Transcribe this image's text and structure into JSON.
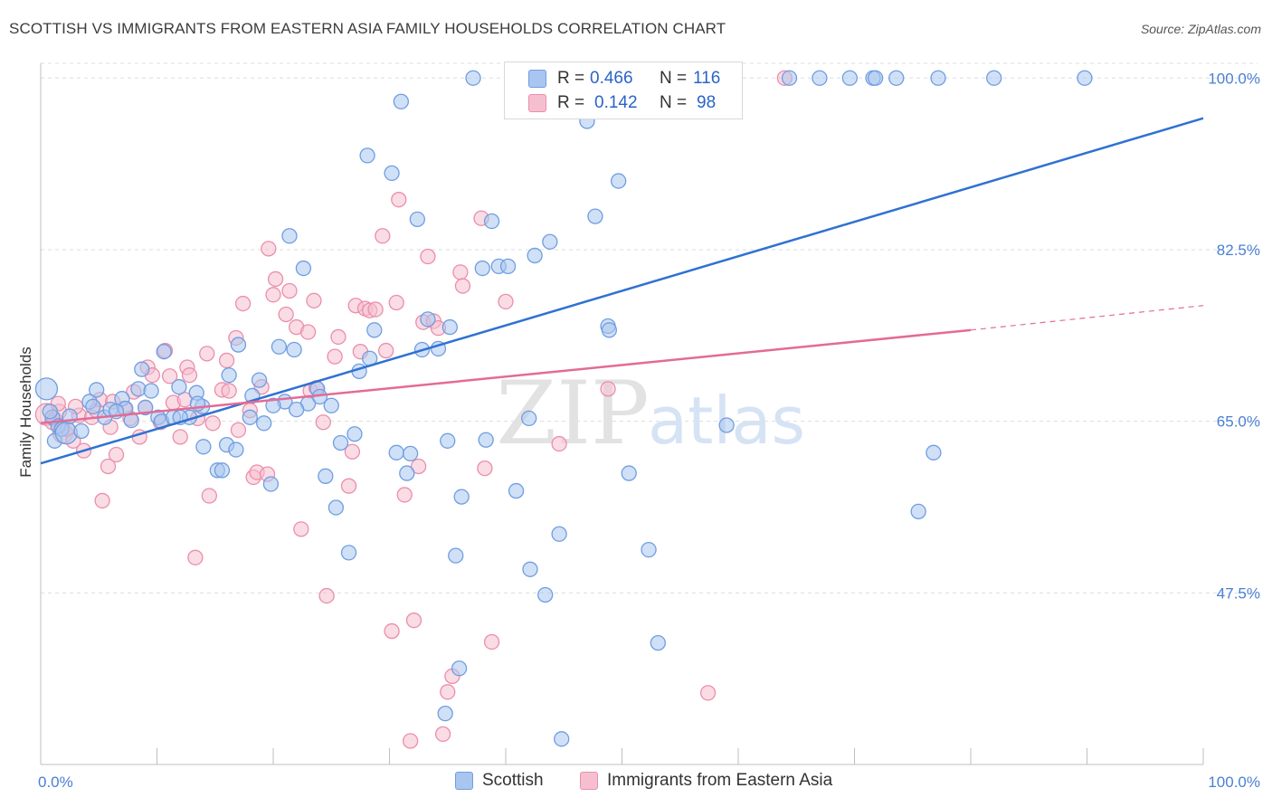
{
  "header": {
    "title": "SCOTTISH VS IMMIGRANTS FROM EASTERN ASIA FAMILY HOUSEHOLDS CORRELATION CHART",
    "source": "Source: ZipAtlas.com"
  },
  "watermark": {
    "zip": "ZIP",
    "atlas": "atlas"
  },
  "colors": {
    "blue_fill": "#a9c6f0",
    "blue_stroke": "#6f9ee0",
    "blue_line": "#2f72d2",
    "pink_fill": "#f6bfd0",
    "pink_stroke": "#eb8eab",
    "pink_line": "#e36b96",
    "axis_text": "#4a7fd4",
    "grid": "#dddddd"
  },
  "legend": {
    "rows": [
      {
        "r_label": "R =",
        "r_value": "0.466",
        "n_label": "N =",
        "n_value": "116"
      },
      {
        "r_label": "R =",
        "r_value": "0.142",
        "n_label": "N =",
        "n_value": "98"
      }
    ],
    "bottom": [
      "Scottish",
      "Immigrants from Eastern Asia"
    ]
  },
  "chart_data": {
    "type": "scatter",
    "title": "SCOTTISH VS IMMIGRANTS FROM EASTERN ASIA FAMILY HOUSEHOLDS CORRELATION CHART",
    "xlabel": "",
    "ylabel": "Family Households",
    "xlim": [
      0,
      100
    ],
    "ylim": [
      30,
      101.5
    ],
    "x_tick_labels": [
      "0.0%",
      "100.0%"
    ],
    "y_ticks": [
      47.5,
      65.0,
      82.5,
      100.0
    ],
    "y_tick_labels": [
      "47.5%",
      "65.0%",
      "82.5%",
      "100.0%"
    ],
    "series": [
      {
        "name": "Scottish",
        "R": 0.466,
        "N": 116,
        "trend": {
          "x": [
            0,
            100
          ],
          "y": [
            60.7,
            95.9
          ]
        },
        "points": [
          [
            0.5,
            68.3
          ],
          [
            1.0,
            65.4
          ],
          [
            1.2,
            63.0
          ],
          [
            1.5,
            64.5
          ],
          [
            1.8,
            64.2
          ],
          [
            2.2,
            63.8
          ],
          [
            2.5,
            65.5
          ],
          [
            3.5,
            64.0
          ],
          [
            4.2,
            67.0
          ],
          [
            4.8,
            68.2
          ],
          [
            5.5,
            65.4
          ],
          [
            6.0,
            66.2
          ],
          [
            7.0,
            67.3
          ],
          [
            7.3,
            66.3
          ],
          [
            7.8,
            65.1
          ],
          [
            8.4,
            68.3
          ],
          [
            8.7,
            70.3
          ],
          [
            9.5,
            68.1
          ],
          [
            10.1,
            65.4
          ],
          [
            10.4,
            65.0
          ],
          [
            10.6,
            72.1
          ],
          [
            11.4,
            65.4
          ],
          [
            11.9,
            68.5
          ],
          [
            12.8,
            65.4
          ],
          [
            13.4,
            67.9
          ],
          [
            13.9,
            66.5
          ],
          [
            14.0,
            62.4
          ],
          [
            15.2,
            60.0
          ],
          [
            15.6,
            60.0
          ],
          [
            16.0,
            62.6
          ],
          [
            16.2,
            69.7
          ],
          [
            16.8,
            62.1
          ],
          [
            17.0,
            72.8
          ],
          [
            18.2,
            67.6
          ],
          [
            18.8,
            69.2
          ],
          [
            19.2,
            64.8
          ],
          [
            19.8,
            58.6
          ],
          [
            20.5,
            72.6
          ],
          [
            21.0,
            67.0
          ],
          [
            21.4,
            83.9
          ],
          [
            21.8,
            72.3
          ],
          [
            22.6,
            80.6
          ],
          [
            23.0,
            66.8
          ],
          [
            23.8,
            68.3
          ],
          [
            24.5,
            59.4
          ],
          [
            25.0,
            66.6
          ],
          [
            25.4,
            56.2
          ],
          [
            25.8,
            62.8
          ],
          [
            26.5,
            51.6
          ],
          [
            27.0,
            63.7
          ],
          [
            27.4,
            70.1
          ],
          [
            28.1,
            92.1
          ],
          [
            28.3,
            71.4
          ],
          [
            28.7,
            74.3
          ],
          [
            30.2,
            90.3
          ],
          [
            30.6,
            61.8
          ],
          [
            31.0,
            97.6
          ],
          [
            31.5,
            59.7
          ],
          [
            31.8,
            61.7
          ],
          [
            32.4,
            85.6
          ],
          [
            32.8,
            72.3
          ],
          [
            33.3,
            75.4
          ],
          [
            34.2,
            72.4
          ],
          [
            34.8,
            35.2
          ],
          [
            35.0,
            63.0
          ],
          [
            35.2,
            74.6
          ],
          [
            35.7,
            51.3
          ],
          [
            36.0,
            39.8
          ],
          [
            36.2,
            57.3
          ],
          [
            37.2,
            100.0
          ],
          [
            38.0,
            80.6
          ],
          [
            38.3,
            63.1
          ],
          [
            38.8,
            85.4
          ],
          [
            39.4,
            80.8
          ],
          [
            40.2,
            80.8
          ],
          [
            40.9,
            57.9
          ],
          [
            42.0,
            65.3
          ],
          [
            42.1,
            49.9
          ],
          [
            42.5,
            81.9
          ],
          [
            43.4,
            47.3
          ],
          [
            43.8,
            83.3
          ],
          [
            44.6,
            53.5
          ],
          [
            44.8,
            32.6
          ],
          [
            45.2,
            100.0
          ],
          [
            47.0,
            95.6
          ],
          [
            47.7,
            85.9
          ],
          [
            48.8,
            74.7
          ],
          [
            48.9,
            74.3
          ],
          [
            49.7,
            89.5
          ],
          [
            50.6,
            59.7
          ],
          [
            52.3,
            51.9
          ],
          [
            52.5,
            100.0
          ],
          [
            53.1,
            42.4
          ],
          [
            54.4,
            100.0
          ],
          [
            55.1,
            100.0
          ],
          [
            56.0,
            100.0
          ],
          [
            59.0,
            64.6
          ],
          [
            64.4,
            100.0
          ],
          [
            67.0,
            100.0
          ],
          [
            69.6,
            100.0
          ],
          [
            71.6,
            100.0
          ],
          [
            71.8,
            100.0
          ],
          [
            73.6,
            100.0
          ],
          [
            75.5,
            55.8
          ],
          [
            76.8,
            61.8
          ],
          [
            77.2,
            100.0
          ],
          [
            82.0,
            100.0
          ],
          [
            89.8,
            100.0
          ],
          [
            0.8,
            66.0
          ],
          [
            4.5,
            66.5
          ],
          [
            6.5,
            66.0
          ],
          [
            9.0,
            66.4
          ],
          [
            12.0,
            65.4
          ],
          [
            13.5,
            66.8
          ],
          [
            18.0,
            65.4
          ],
          [
            20.0,
            66.6
          ],
          [
            22.0,
            66.2
          ],
          [
            24.0,
            67.5
          ]
        ]
      },
      {
        "name": "Immigrants from Eastern Asia",
        "R": 0.142,
        "N": 98,
        "trend": {
          "x": [
            0,
            80
          ],
          "y": [
            64.8,
            74.3
          ]
        },
        "trend_extension": {
          "x": [
            80,
            100
          ],
          "y": [
            74.3,
            76.8
          ]
        },
        "points": [
          [
            0.5,
            65.7
          ],
          [
            1.0,
            64.9
          ],
          [
            1.2,
            65.2
          ],
          [
            1.6,
            66.0
          ],
          [
            1.9,
            63.8
          ],
          [
            2.3,
            64.2
          ],
          [
            2.8,
            63.0
          ],
          [
            3.3,
            65.6
          ],
          [
            3.7,
            62.0
          ],
          [
            4.4,
            65.4
          ],
          [
            4.8,
            66.1
          ],
          [
            5.1,
            67.2
          ],
          [
            5.3,
            56.9
          ],
          [
            5.8,
            60.4
          ],
          [
            6.0,
            64.4
          ],
          [
            6.5,
            61.6
          ],
          [
            7.2,
            66.3
          ],
          [
            7.7,
            65.3
          ],
          [
            8.0,
            68.0
          ],
          [
            8.5,
            63.4
          ],
          [
            9.0,
            66.4
          ],
          [
            9.2,
            70.5
          ],
          [
            9.6,
            69.7
          ],
          [
            10.3,
            64.9
          ],
          [
            10.7,
            72.2
          ],
          [
            11.1,
            69.6
          ],
          [
            11.4,
            66.9
          ],
          [
            12.0,
            63.4
          ],
          [
            12.4,
            67.2
          ],
          [
            12.6,
            70.5
          ],
          [
            12.8,
            69.7
          ],
          [
            13.3,
            51.1
          ],
          [
            13.5,
            65.3
          ],
          [
            14.3,
            71.9
          ],
          [
            14.5,
            57.4
          ],
          [
            14.8,
            64.8
          ],
          [
            15.6,
            68.2
          ],
          [
            16.0,
            71.2
          ],
          [
            16.2,
            68.1
          ],
          [
            16.8,
            73.5
          ],
          [
            17.0,
            64.1
          ],
          [
            17.4,
            77.0
          ],
          [
            18.0,
            66.1
          ],
          [
            18.3,
            59.3
          ],
          [
            18.6,
            59.8
          ],
          [
            19.0,
            68.5
          ],
          [
            19.5,
            59.6
          ],
          [
            19.6,
            82.6
          ],
          [
            20.0,
            77.9
          ],
          [
            20.2,
            79.5
          ],
          [
            21.1,
            75.9
          ],
          [
            21.4,
            78.3
          ],
          [
            22.0,
            74.6
          ],
          [
            22.4,
            54.0
          ],
          [
            23.0,
            74.1
          ],
          [
            23.2,
            68.1
          ],
          [
            23.5,
            77.3
          ],
          [
            23.7,
            68.4
          ],
          [
            24.3,
            64.9
          ],
          [
            24.6,
            47.2
          ],
          [
            25.3,
            71.6
          ],
          [
            25.6,
            73.6
          ],
          [
            26.5,
            58.4
          ],
          [
            26.8,
            61.9
          ],
          [
            27.1,
            76.8
          ],
          [
            27.5,
            72.1
          ],
          [
            27.9,
            76.5
          ],
          [
            28.3,
            76.3
          ],
          [
            28.8,
            76.4
          ],
          [
            29.4,
            83.9
          ],
          [
            29.7,
            72.2
          ],
          [
            30.2,
            43.6
          ],
          [
            30.6,
            77.1
          ],
          [
            30.8,
            87.6
          ],
          [
            31.3,
            57.5
          ],
          [
            31.8,
            32.4
          ],
          [
            32.1,
            44.7
          ],
          [
            32.5,
            60.4
          ],
          [
            32.9,
            75.1
          ],
          [
            33.3,
            81.8
          ],
          [
            33.8,
            75.2
          ],
          [
            34.2,
            74.5
          ],
          [
            34.6,
            33.1
          ],
          [
            35.0,
            37.4
          ],
          [
            35.4,
            39.0
          ],
          [
            36.1,
            80.2
          ],
          [
            36.3,
            78.8
          ],
          [
            37.9,
            85.7
          ],
          [
            38.2,
            60.2
          ],
          [
            38.8,
            42.5
          ],
          [
            40.0,
            77.2
          ],
          [
            44.6,
            62.7
          ],
          [
            48.8,
            68.3
          ],
          [
            57.4,
            37.3
          ],
          [
            64.0,
            100.0
          ],
          [
            1.5,
            66.8
          ],
          [
            3.0,
            66.5
          ],
          [
            6.2,
            67.0
          ]
        ]
      }
    ]
  }
}
